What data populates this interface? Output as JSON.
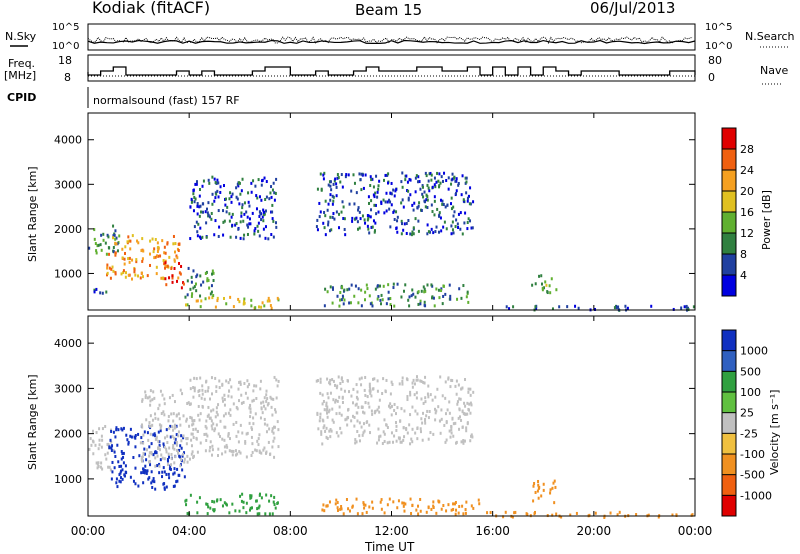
{
  "header": {
    "station": "Kodiak (fitACF)",
    "beam": "Beam 15",
    "date": "06/Jul/2013"
  },
  "noise_panel": {
    "left_label": "N.Sky",
    "right_label": "N.Search",
    "y_ticks_left": [
      "10^5",
      "10^0"
    ],
    "y_ticks_right": [
      "10^5",
      "10^0"
    ]
  },
  "freq_panel": {
    "left_label_1": "Freq.",
    "left_label_2": "[MHz]",
    "right_label": "Nave",
    "y_ticks_left": [
      "18",
      "8"
    ],
    "y_ticks_right": [
      "80",
      "0"
    ]
  },
  "cpid_panel": {
    "label": "CPID",
    "mode_text": "normalsound (fast) 157 RF"
  },
  "x_axis": {
    "title": "Time UT",
    "ticks": [
      "00:00",
      "04:00",
      "08:00",
      "12:00",
      "16:00",
      "20:00",
      "00:00"
    ],
    "tick_hours": [
      0,
      4,
      8,
      12,
      16,
      20,
      24
    ]
  },
  "colorbars": {
    "power": {
      "title": "Power [dB]",
      "ticks": [
        "28",
        "24",
        "20",
        "16",
        "12",
        "8",
        "4"
      ],
      "colors": [
        "#e00000",
        "#f06010",
        "#f5a020",
        "#e0c020",
        "#60b030",
        "#308040",
        "#2040a0",
        "#0000e0"
      ]
    },
    "velocity": {
      "title": "Velocity [m s⁻¹]",
      "ticks": [
        "1000",
        "500",
        "100",
        "25",
        "-25",
        "-100",
        "-500",
        "-1000"
      ],
      "colors": [
        "#1030c0",
        "#3060c0",
        "#30a040",
        "#60c040",
        "#c0c0c0",
        "#f0c040",
        "#f09020",
        "#f06010",
        "#e00000"
      ]
    }
  },
  "chart_data": [
    {
      "type": "heatmap",
      "title": "Power",
      "xlabel": "Time UT",
      "ylabel": "Slant Range [km]",
      "y_ticks": [
        1000,
        2000,
        3000,
        4000
      ],
      "ylim": [
        180,
        4600
      ],
      "xlim": [
        0,
        24
      ],
      "cbar_label": "Power [dB]",
      "cbar_range": [
        0,
        30
      ],
      "regions": [
        {
          "t0": 0.0,
          "t1": 1.2,
          "r0": 1400,
          "r1": 2100,
          "level": 2
        },
        {
          "t0": 0.7,
          "t1": 3.6,
          "r0": 900,
          "r1": 1900,
          "level": 5
        },
        {
          "t0": 3.0,
          "t1": 3.8,
          "r0": 700,
          "r1": 1300,
          "level": 7
        },
        {
          "t0": 0.0,
          "t1": 0.7,
          "r0": 500,
          "r1": 700,
          "level": 1
        },
        {
          "t0": 3.8,
          "t1": 7.5,
          "r0": 250,
          "r1": 500,
          "level": 4
        },
        {
          "t0": 3.8,
          "t1": 5.0,
          "r0": 500,
          "r1": 1200,
          "level": 2
        },
        {
          "t0": 4.0,
          "t1": 7.5,
          "r0": 1800,
          "r1": 3200,
          "level": 1
        },
        {
          "t0": 9.3,
          "t1": 15.0,
          "r0": 300,
          "r1": 800,
          "level": 2
        },
        {
          "t0": 9.0,
          "t1": 15.2,
          "r0": 1900,
          "r1": 3300,
          "level": 1
        },
        {
          "t0": 15.5,
          "t1": 24.0,
          "r0": 200,
          "r1": 300,
          "level": 1
        },
        {
          "t0": 17.5,
          "t1": 18.5,
          "r0": 600,
          "r1": 1000,
          "level": 3
        }
      ]
    },
    {
      "type": "heatmap",
      "title": "Velocity",
      "xlabel": "Time UT",
      "ylabel": "Slant Range [km]",
      "y_ticks": [
        1000,
        2000,
        3000,
        4000
      ],
      "ylim": [
        180,
        4600
      ],
      "xlim": [
        0,
        24
      ],
      "cbar_label": "Velocity [m s⁻¹]",
      "cbar_range": [
        -1000,
        1000
      ],
      "regions": [
        {
          "t0": 0.0,
          "t1": 1.0,
          "r0": 1200,
          "r1": 2200,
          "level": 4
        },
        {
          "t0": 0.8,
          "t1": 3.8,
          "r0": 800,
          "r1": 2200,
          "level": 0
        },
        {
          "t0": 2.0,
          "t1": 4.0,
          "r0": 1300,
          "r1": 3000,
          "level": 4
        },
        {
          "t0": 3.8,
          "t1": 7.5,
          "r0": 250,
          "r1": 700,
          "level": 2
        },
        {
          "t0": 4.0,
          "t1": 7.5,
          "r0": 1500,
          "r1": 3300,
          "level": 4
        },
        {
          "t0": 9.2,
          "t1": 15.5,
          "r0": 250,
          "r1": 600,
          "level": 6
        },
        {
          "t0": 9.0,
          "t1": 15.2,
          "r0": 1800,
          "r1": 3300,
          "level": 4
        },
        {
          "t0": 15.5,
          "t1": 24.0,
          "r0": 180,
          "r1": 300,
          "level": 6
        },
        {
          "t0": 17.5,
          "t1": 18.5,
          "r0": 500,
          "r1": 1000,
          "level": 6
        }
      ]
    }
  ]
}
